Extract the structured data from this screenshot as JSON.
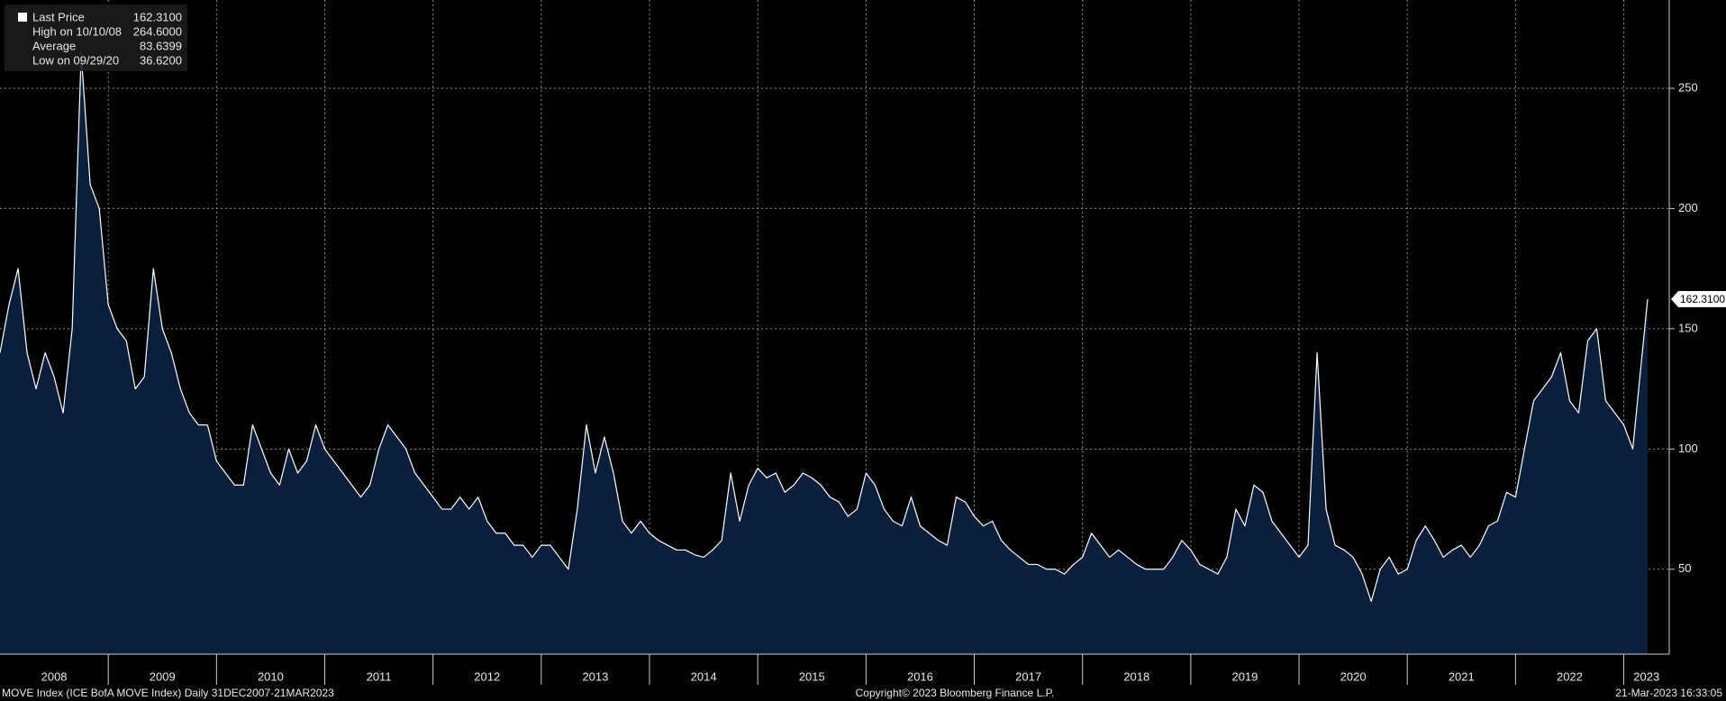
{
  "chart_data": {
    "type": "area",
    "legend": {
      "series_value": "162.3100",
      "stats": [
        {
          "label": "High on 10/10/08",
          "value": "264.6000"
        },
        {
          "label": "Average",
          "value": "83.6399"
        },
        {
          "label": "Low on 09/29/20",
          "value": "36.6200"
        }
      ]
    },
    "last_label": "162.3100",
    "footer": {
      "left": "MOVE Index (ICE BofA MOVE Index)  Daily 31DEC2007-21MAR2023",
      "center": "Copyright© 2023 Bloomberg Finance L.P.",
      "right": "21-Mar-2023 16:33:05"
    },
    "x": [
      2008,
      2008.083,
      2008.167,
      2008.25,
      2008.333,
      2008.417,
      2008.5,
      2008.583,
      2008.667,
      2008.75,
      2008.833,
      2008.917,
      2009,
      2009.083,
      2009.167,
      2009.25,
      2009.333,
      2009.417,
      2009.5,
      2009.583,
      2009.667,
      2009.75,
      2009.833,
      2009.917,
      2010,
      2010.083,
      2010.167,
      2010.25,
      2010.333,
      2010.417,
      2010.5,
      2010.583,
      2010.667,
      2010.75,
      2010.833,
      2010.917,
      2011,
      2011.083,
      2011.167,
      2011.25,
      2011.333,
      2011.417,
      2011.5,
      2011.583,
      2011.667,
      2011.75,
      2011.833,
      2011.917,
      2012,
      2012.083,
      2012.167,
      2012.25,
      2012.333,
      2012.417,
      2012.5,
      2012.583,
      2012.667,
      2012.75,
      2012.833,
      2012.917,
      2013,
      2013.083,
      2013.167,
      2013.25,
      2013.333,
      2013.417,
      2013.5,
      2013.583,
      2013.667,
      2013.75,
      2013.833,
      2013.917,
      2014,
      2014.083,
      2014.167,
      2014.25,
      2014.333,
      2014.417,
      2014.5,
      2014.583,
      2014.667,
      2014.75,
      2014.833,
      2014.917,
      2015,
      2015.083,
      2015.167,
      2015.25,
      2015.333,
      2015.417,
      2015.5,
      2015.583,
      2015.667,
      2015.75,
      2015.833,
      2015.917,
      2016,
      2016.083,
      2016.167,
      2016.25,
      2016.333,
      2016.417,
      2016.5,
      2016.583,
      2016.667,
      2016.75,
      2016.833,
      2016.917,
      2017,
      2017.083,
      2017.167,
      2017.25,
      2017.333,
      2017.417,
      2017.5,
      2017.583,
      2017.667,
      2017.75,
      2017.833,
      2017.917,
      2018,
      2018.083,
      2018.167,
      2018.25,
      2018.333,
      2018.417,
      2018.5,
      2018.583,
      2018.667,
      2018.75,
      2018.833,
      2018.917,
      2019,
      2019.083,
      2019.167,
      2019.25,
      2019.333,
      2019.417,
      2019.5,
      2019.583,
      2019.667,
      2019.75,
      2019.833,
      2019.917,
      2020,
      2020.083,
      2020.167,
      2020.25,
      2020.333,
      2020.417,
      2020.5,
      2020.583,
      2020.667,
      2020.75,
      2020.833,
      2020.917,
      2021,
      2021.083,
      2021.167,
      2021.25,
      2021.333,
      2021.417,
      2021.5,
      2021.583,
      2021.667,
      2021.75,
      2021.833,
      2021.917,
      2022,
      2022.083,
      2022.167,
      2022.25,
      2022.333,
      2022.417,
      2022.5,
      2022.583,
      2022.667,
      2022.75,
      2022.833,
      2022.917,
      2023,
      2023.083,
      2023.22
    ],
    "series": [
      {
        "name": "Last Price",
        "color": "#ffffff",
        "fill": "#0a1f3c",
        "values": [
          140,
          160,
          175,
          140,
          125,
          140,
          130,
          115,
          150,
          264.6,
          210,
          200,
          160,
          150,
          145,
          125,
          130,
          175,
          150,
          140,
          125,
          115,
          110,
          110,
          95,
          90,
          85,
          85,
          110,
          100,
          90,
          85,
          100,
          90,
          95,
          110,
          100,
          95,
          90,
          85,
          80,
          85,
          100,
          110,
          105,
          100,
          90,
          85,
          80,
          75,
          75,
          80,
          75,
          80,
          70,
          65,
          65,
          60,
          60,
          55,
          60,
          60,
          55,
          50,
          75,
          110,
          90,
          105,
          90,
          70,
          65,
          70,
          65,
          62,
          60,
          58,
          58,
          56,
          55,
          58,
          62,
          90,
          70,
          85,
          92,
          88,
          90,
          82,
          85,
          90,
          88,
          85,
          80,
          78,
          72,
          75,
          90,
          85,
          75,
          70,
          68,
          80,
          68,
          65,
          62,
          60,
          80,
          78,
          72,
          68,
          70,
          62,
          58,
          55,
          52,
          52,
          50,
          50,
          48,
          52,
          55,
          65,
          60,
          55,
          58,
          55,
          52,
          50,
          50,
          50,
          55,
          62,
          58,
          52,
          50,
          48,
          55,
          75,
          68,
          85,
          82,
          70,
          65,
          60,
          55,
          60,
          140,
          75,
          60,
          58,
          55,
          48,
          36.62,
          50,
          55,
          48,
          50,
          62,
          68,
          62,
          55,
          58,
          60,
          55,
          60,
          68,
          70,
          82,
          80,
          100,
          120,
          125,
          130,
          140,
          120,
          115,
          145,
          150,
          120,
          115,
          110,
          100,
          162.31
        ]
      }
    ],
    "xlim": [
      2008,
      2023.42
    ],
    "xticks": [
      2008,
      2009,
      2010,
      2011,
      2012,
      2013,
      2014,
      2015,
      2016,
      2017,
      2018,
      2019,
      2020,
      2021,
      2022,
      2023
    ],
    "ylim": [
      14.7,
      286.7
    ],
    "yticks": [
      50,
      100,
      150,
      200,
      250
    ],
    "grid": true
  }
}
